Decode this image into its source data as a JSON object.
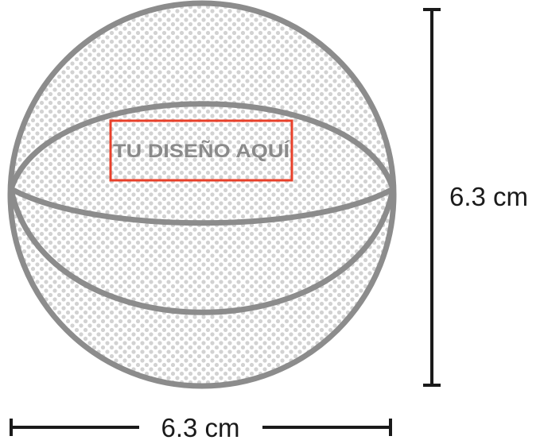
{
  "design_area": {
    "label": "TU DISEÑO AQUÍ"
  },
  "dimensions": {
    "height_label": "6.3 cm",
    "width_label": "6.3 cm"
  },
  "colors": {
    "ball_outline": "#8c8c8c",
    "ball_dots": "#d2d2d2",
    "design_frame": "#e8402a",
    "dimension_lines": "#1a1a1a"
  }
}
